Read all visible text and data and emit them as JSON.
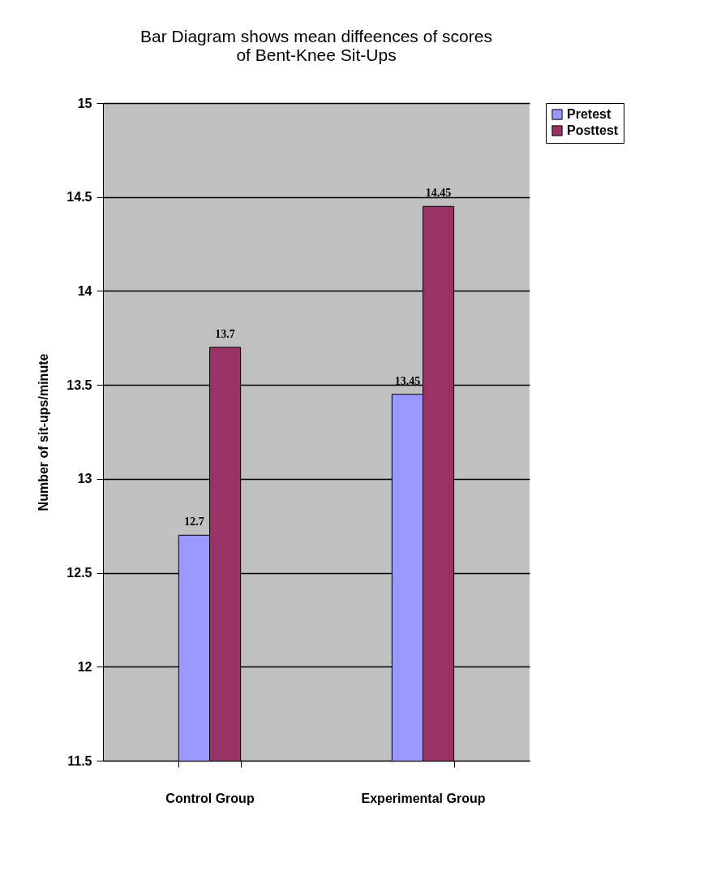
{
  "chart_data": {
    "type": "bar",
    "title": "Bar Diagram shows mean diffeences of scores\nof Bent-Knee Sit-Ups",
    "ylabel": "Number of sit-ups/minute",
    "categories": [
      "Control Group",
      "Experimental Group"
    ],
    "series": [
      {
        "name": "Pretest",
        "color": "#9999ff",
        "values": [
          12.7,
          13.45
        ]
      },
      {
        "name": "Posttest",
        "color": "#993366",
        "values": [
          13.7,
          14.45
        ]
      }
    ],
    "ylim": [
      11.5,
      15
    ],
    "yticks": [
      11.5,
      12,
      12.5,
      13,
      13.5,
      14,
      14.5,
      15
    ],
    "grid": "y",
    "legend": "right",
    "data_labels": true
  }
}
